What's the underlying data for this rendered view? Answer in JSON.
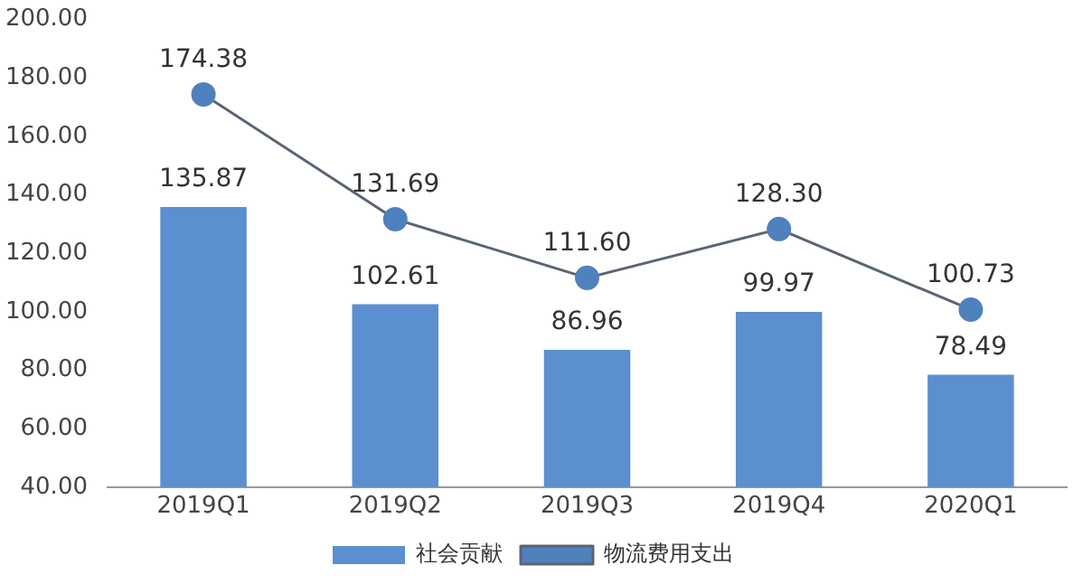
{
  "chart_data": {
    "type": "bar",
    "categories": [
      "2019Q1",
      "2019Q2",
      "2019Q3",
      "2019Q4",
      "2020Q1"
    ],
    "series": [
      {
        "name": "社会贡献",
        "color": "#5b8fcf",
        "values": [
          135.87,
          102.61,
          86.96,
          99.97,
          78.49
        ]
      },
      {
        "name": "物流费用支出",
        "type": "line",
        "color": "#5a6474",
        "marker": "circle",
        "values": [
          174.38,
          131.69,
          111.6,
          128.3,
          100.73
        ],
        "value_labels": [
          "174.38",
          "131.69",
          "111.60",
          "128.30",
          "100.73"
        ]
      }
    ],
    "data_labels": true,
    "ylim": [
      40,
      200
    ],
    "yticks": [
      {
        "value": 40,
        "label": "40.00"
      },
      {
        "value": 60,
        "label": "60.00"
      },
      {
        "value": 80,
        "label": "80.00"
      },
      {
        "value": 100,
        "label": "100.00"
      },
      {
        "value": 120,
        "label": "120.00"
      },
      {
        "value": 140,
        "label": "140.00"
      },
      {
        "value": 160,
        "label": "160.00"
      },
      {
        "value": 180,
        "label": "180.00"
      },
      {
        "value": 200,
        "label": "200.00"
      }
    ],
    "legend": "bottom",
    "grid": false
  }
}
